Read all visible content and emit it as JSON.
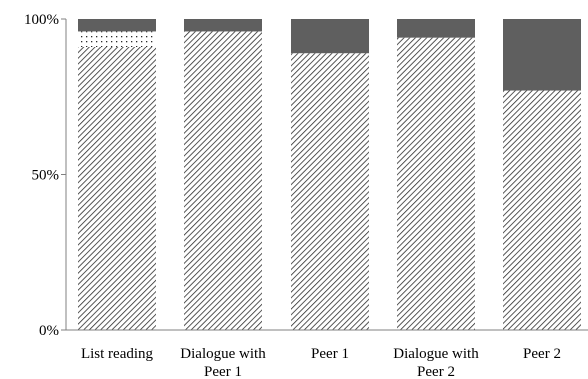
{
  "chart_data": {
    "type": "bar",
    "stacked": true,
    "normalized": true,
    "title": "",
    "xlabel": "",
    "ylabel": "",
    "ylim": [
      0,
      100
    ],
    "yticks": [
      "0%",
      "50%",
      "100%"
    ],
    "categories": [
      [
        "List reading"
      ],
      [
        "Dialogue with",
        "Peer 1"
      ],
      [
        "Peer 1"
      ],
      [
        "Dialogue with",
        "Peer 2"
      ],
      [
        "Peer 2"
      ]
    ],
    "series": [
      {
        "pattern": "diagonal-hatch",
        "color": "#2b2b2b",
        "values": [
          91,
          96,
          89,
          94,
          77
        ]
      },
      {
        "pattern": "dots",
        "color": "#2b2b2b",
        "values": [
          5,
          0,
          0,
          0,
          0
        ]
      },
      {
        "pattern": "solid",
        "color": "#5f5f5f",
        "values": [
          4,
          4,
          11,
          6,
          23
        ]
      }
    ],
    "legend": "none",
    "grid": false
  }
}
